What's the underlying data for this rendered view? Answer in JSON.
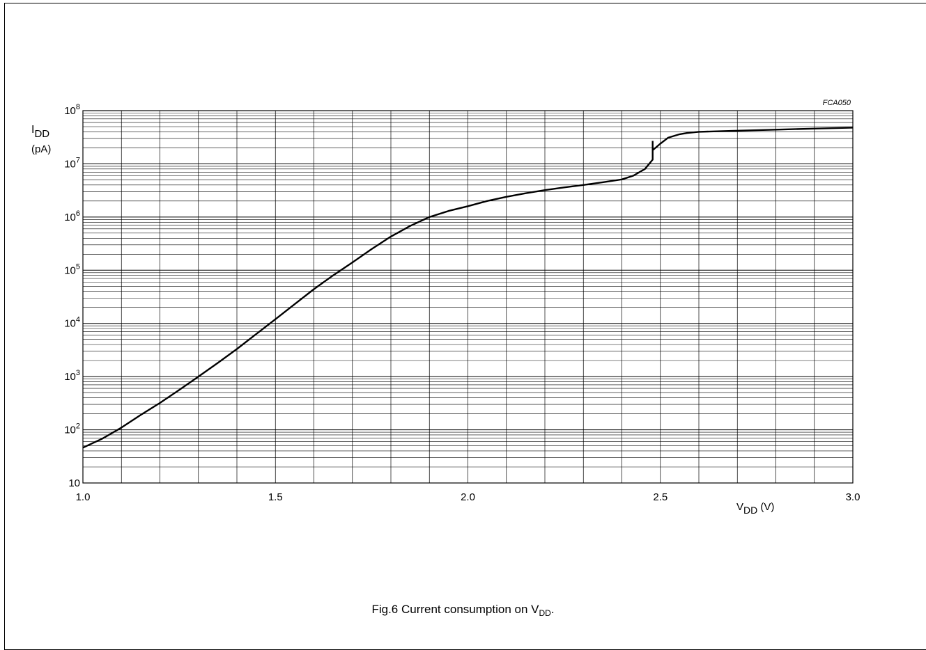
{
  "figure": {
    "code": "FCA050",
    "caption": {
      "prefix": "Fig.6  Current consumption on V",
      "sub": "DD",
      "suffix": "."
    }
  },
  "chart_data": {
    "type": "line",
    "title": "",
    "x_scale": "linear",
    "y_scale": "log",
    "xlim": [
      1.0,
      3.0
    ],
    "ylim": [
      10,
      100000000
    ],
    "grid": true,
    "legend": "none",
    "xlabel": {
      "main": "V",
      "sub": "DD",
      "unit": " (V)"
    },
    "ylabel": {
      "main": "I",
      "sub": "DD",
      "unit": "(pA)"
    },
    "x_ticks": [
      {
        "value": 1.0,
        "label": "1.0"
      },
      {
        "value": 1.5,
        "label": "1.5"
      },
      {
        "value": 2.0,
        "label": "2.0"
      },
      {
        "value": 2.5,
        "label": "2.5"
      },
      {
        "value": 3.0,
        "label": "3.0"
      }
    ],
    "y_ticks": [
      {
        "value": 10,
        "label": "10",
        "exp": ""
      },
      {
        "value": 100,
        "label": "10",
        "exp": "2"
      },
      {
        "value": 1000,
        "label": "10",
        "exp": "3"
      },
      {
        "value": 10000,
        "label": "10",
        "exp": "4"
      },
      {
        "value": 100000,
        "label": "10",
        "exp": "5"
      },
      {
        "value": 1000000,
        "label": "10",
        "exp": "6"
      },
      {
        "value": 10000000,
        "label": "10",
        "exp": "7"
      },
      {
        "value": 100000000,
        "label": "10",
        "exp": "8"
      }
    ],
    "series": [
      {
        "color": "#000000",
        "x": [
          1.0,
          1.05,
          1.1,
          1.15,
          1.2,
          1.25,
          1.3,
          1.35,
          1.4,
          1.45,
          1.5,
          1.55,
          1.6,
          1.65,
          1.7,
          1.75,
          1.8,
          1.85,
          1.9,
          1.95,
          2.0,
          2.05,
          2.1,
          2.15,
          2.2,
          2.25,
          2.3,
          2.35,
          2.4,
          2.43,
          2.46,
          2.48,
          2.48,
          2.5,
          2.52,
          2.55,
          2.57,
          2.6,
          2.7,
          2.8,
          2.9,
          3.0
        ],
        "y": [
          46,
          68,
          110,
          190,
          320,
          560,
          1000,
          1800,
          3300,
          6300,
          12000,
          23000,
          44000,
          80000,
          140000,
          250000,
          430000,
          680000,
          1000000,
          1300000,
          1600000,
          2000000,
          2400000,
          2800000,
          3200000,
          3600000,
          4000000,
          4500000,
          5100000,
          6000000,
          8000000,
          12000000,
          18000000,
          24000000,
          31000000,
          36000000,
          38000000,
          40000000,
          42000000,
          44000000,
          46000000,
          48000000
        ]
      }
    ],
    "spike": {
      "x": 2.48,
      "y_low": 18000000,
      "y_high": 27000000
    }
  }
}
